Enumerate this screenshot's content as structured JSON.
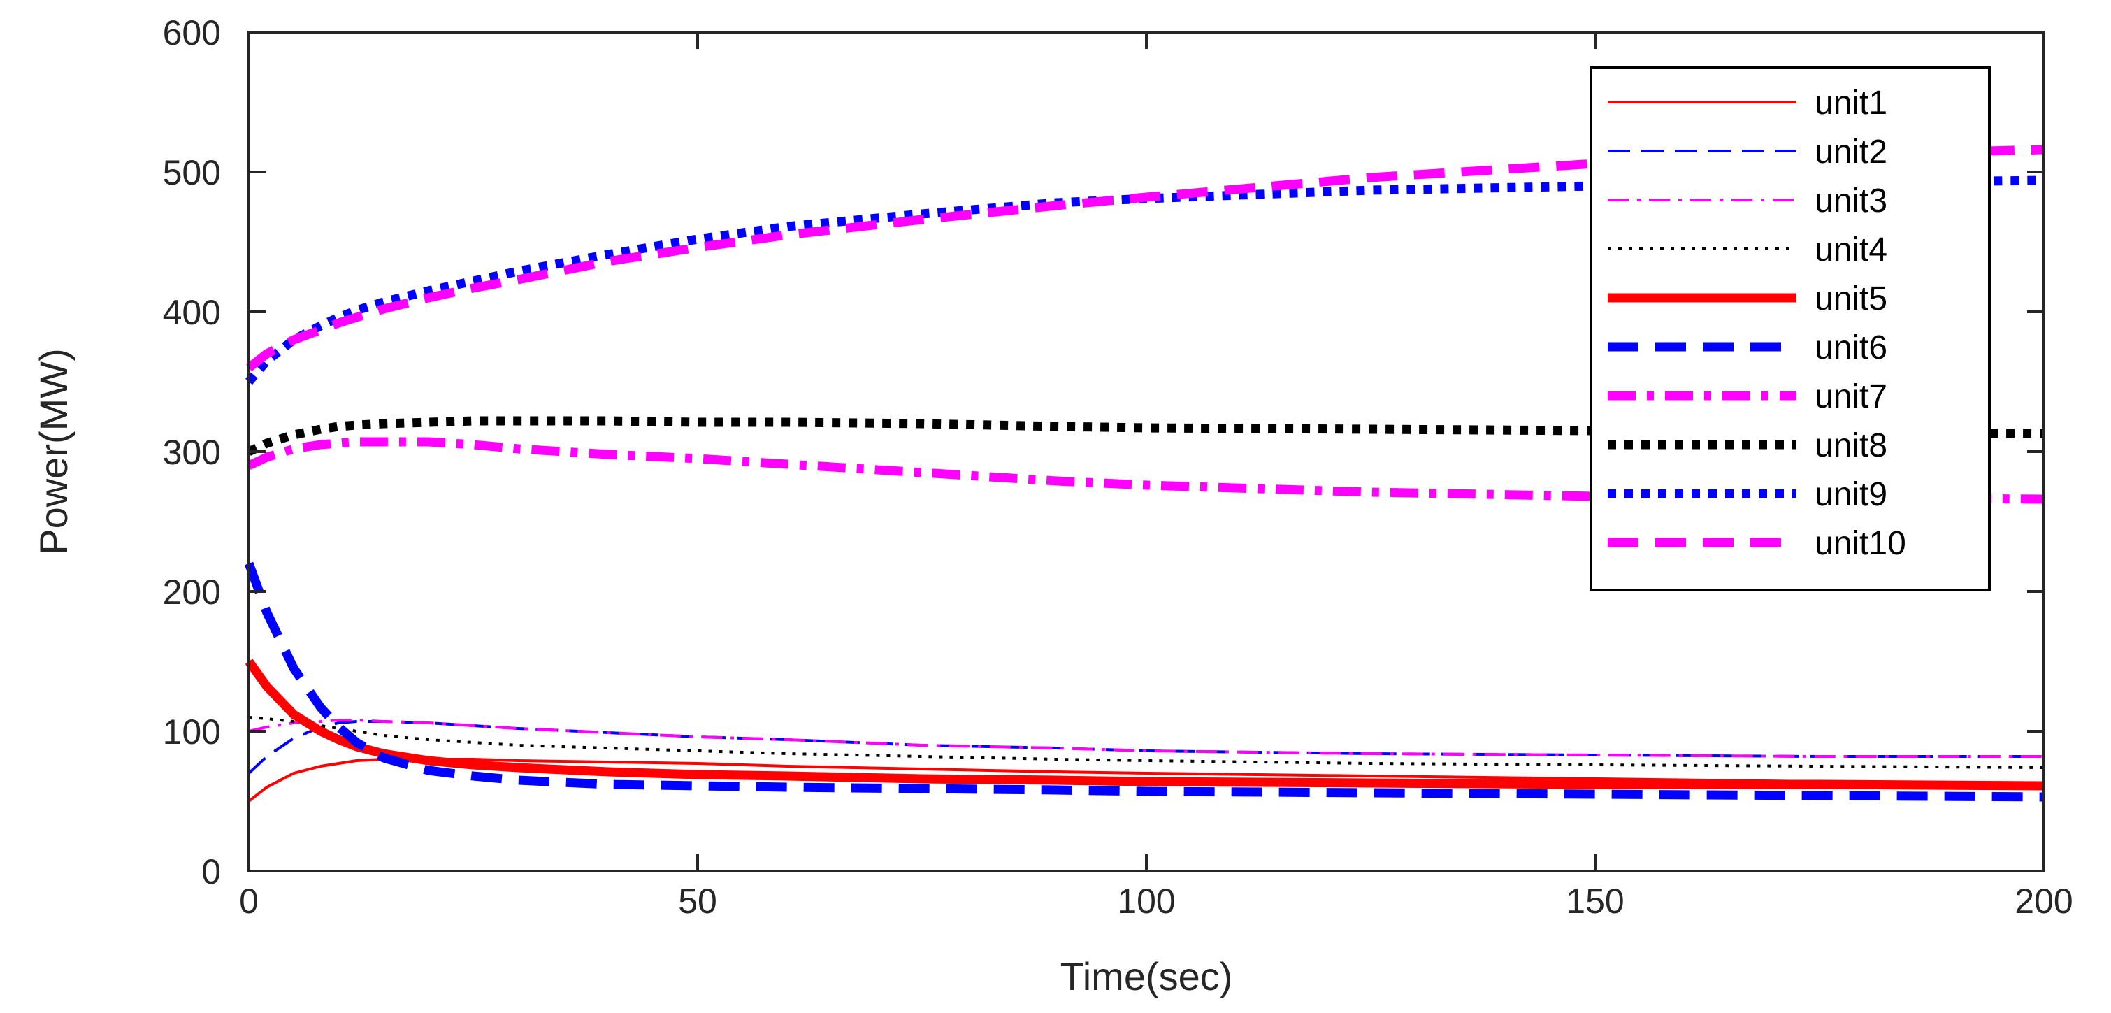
{
  "chart_data": {
    "type": "line",
    "title": "",
    "xlabel": "Time(sec)",
    "ylabel": "Power(MW)",
    "xlim": [
      0,
      200
    ],
    "ylim": [
      0,
      600
    ],
    "xticks": [
      0,
      50,
      100,
      150,
      200
    ],
    "yticks": [
      0,
      100,
      200,
      300,
      400,
      500,
      600
    ],
    "grid": false,
    "legend_position": "top-right",
    "x": [
      0,
      2,
      5,
      8,
      10,
      12,
      15,
      20,
      25,
      30,
      40,
      50,
      60,
      75,
      90,
      100,
      125,
      150,
      175,
      200
    ],
    "series": [
      {
        "name": "unit1",
        "color": "#ff0000",
        "style": "solid",
        "width": "thin",
        "values": [
          50,
          60,
          70,
          75,
          77,
          79,
          80,
          80,
          80,
          79,
          78,
          77,
          75,
          73,
          71,
          70,
          68,
          66,
          64,
          62
        ]
      },
      {
        "name": "unit2",
        "color": "#0000ff",
        "style": "dashed",
        "width": "thin",
        "values": [
          70,
          82,
          95,
          103,
          106,
          107,
          107,
          106,
          104,
          102,
          99,
          96,
          94,
          90,
          88,
          86,
          84,
          83,
          82,
          82
        ]
      },
      {
        "name": "unit3",
        "color": "#ff00ff",
        "style": "dashdot",
        "width": "thin",
        "values": [
          100,
          103,
          106,
          107,
          108,
          108,
          107,
          106,
          104,
          102,
          99,
          96,
          94,
          90,
          88,
          86,
          84,
          83,
          82,
          82
        ]
      },
      {
        "name": "unit4",
        "color": "#000000",
        "style": "dotted",
        "width": "thin",
        "values": [
          110,
          109,
          107,
          104,
          102,
          100,
          97,
          94,
          92,
          90,
          88,
          86,
          84,
          82,
          80,
          79,
          77,
          76,
          75,
          74
        ]
      },
      {
        "name": "unit5",
        "color": "#ff0000",
        "style": "solid",
        "width": "thick",
        "values": [
          150,
          132,
          112,
          100,
          94,
          89,
          84,
          79,
          76,
          74,
          71,
          69,
          68,
          66,
          65,
          64,
          63,
          62,
          62,
          61
        ]
      },
      {
        "name": "unit6",
        "color": "#0000ff",
        "style": "dashed",
        "width": "thick",
        "values": [
          220,
          185,
          145,
          117,
          103,
          92,
          81,
          72,
          68,
          65,
          62,
          61,
          60,
          59,
          58,
          57,
          56,
          55,
          54,
          53
        ]
      },
      {
        "name": "unit7",
        "color": "#ff00ff",
        "style": "dashdot",
        "width": "thick",
        "values": [
          290,
          296,
          302,
          305,
          306,
          307,
          307,
          307,
          305,
          302,
          298,
          295,
          291,
          285,
          279,
          276,
          271,
          268,
          267,
          266
        ]
      },
      {
        "name": "unit8",
        "color": "#000000",
        "style": "dotted",
        "width": "thick",
        "values": [
          300,
          306,
          312,
          316,
          318,
          319,
          320,
          321,
          322,
          322,
          322,
          321,
          321,
          320,
          318,
          317,
          316,
          315,
          314,
          313
        ]
      },
      {
        "name": "unit9",
        "color": "#0000ff",
        "style": "dotted",
        "width": "thick",
        "values": [
          350,
          365,
          380,
          390,
          396,
          401,
          407,
          415,
          422,
          429,
          441,
          452,
          461,
          470,
          478,
          481,
          487,
          490,
          492,
          494
        ]
      },
      {
        "name": "unit10",
        "color": "#ff00ff",
        "style": "dashed",
        "width": "thick",
        "values": [
          360,
          370,
          380,
          387,
          392,
          396,
          402,
          410,
          417,
          423,
          436,
          446,
          455,
          466,
          476,
          482,
          496,
          506,
          512,
          516
        ]
      }
    ]
  }
}
